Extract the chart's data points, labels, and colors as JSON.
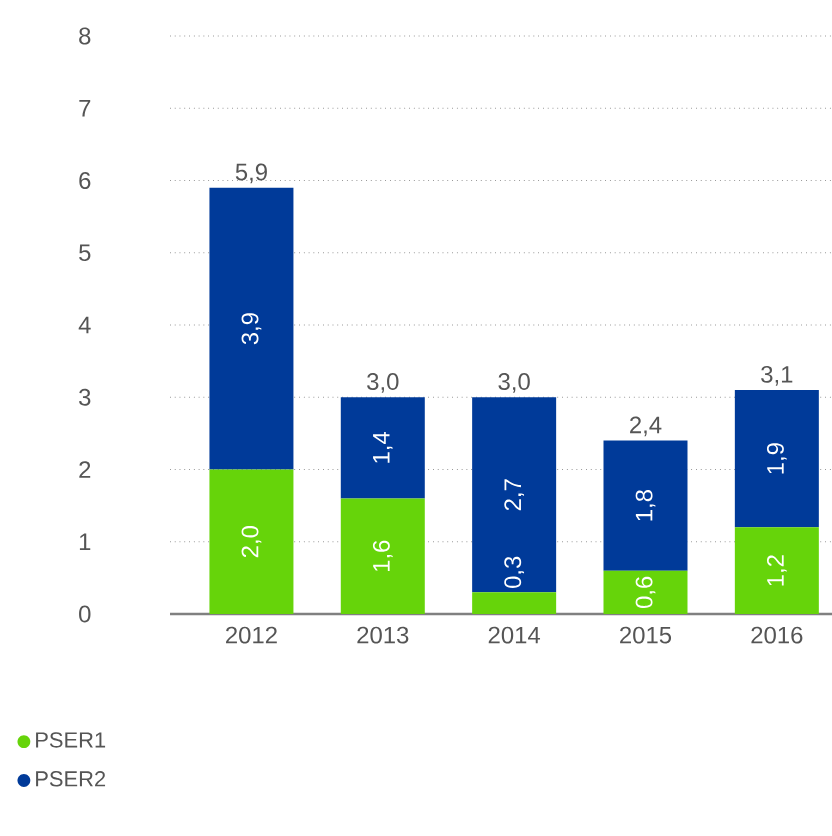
{
  "chart_data": {
    "type": "bar",
    "stacked": true,
    "categories": [
      "2012",
      "2013",
      "2014",
      "2015",
      "2016"
    ],
    "series": [
      {
        "name": "PSER1",
        "color": "#66d40a",
        "values": [
          2.0,
          1.6,
          0.3,
          0.6,
          1.2
        ],
        "value_labels": [
          "2,0",
          "1,6",
          "0,3",
          "0,6",
          "1,2"
        ]
      },
      {
        "name": "PSER2",
        "color": "#003a99",
        "values": [
          3.9,
          1.4,
          2.7,
          1.8,
          1.9
        ],
        "value_labels": [
          "3,9",
          "1,4",
          "2,7",
          "1,8",
          "1,9"
        ]
      }
    ],
    "totals": [
      "5,9",
      "3,0",
      "3,0",
      "2,4",
      "3,1"
    ],
    "ylim": [
      0,
      8
    ],
    "yticks": [
      0,
      1,
      2,
      3,
      4,
      5,
      6,
      7,
      8
    ],
    "grid": "y",
    "legend": "bottom"
  }
}
